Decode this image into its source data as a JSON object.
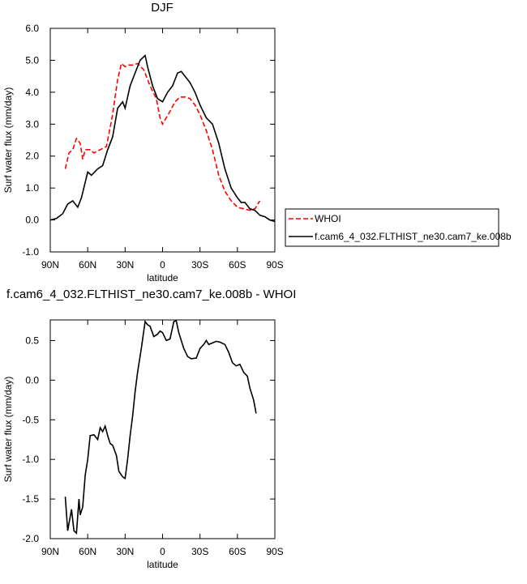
{
  "chart_data": [
    {
      "type": "line",
      "title": "DJF",
      "xlabel": "latitude",
      "ylabel": "Surf water flux (mm/day)",
      "xlim": [
        90,
        -90
      ],
      "ylim": [
        -1,
        6
      ],
      "xticks": [
        {
          "value": 90,
          "label": "90N"
        },
        {
          "value": 60,
          "label": "60N"
        },
        {
          "value": 30,
          "label": "30N"
        },
        0,
        {
          "value": -30,
          "label": "30S"
        },
        {
          "value": -60,
          "label": "60S"
        },
        {
          "value": -90,
          "label": "90S"
        }
      ],
      "yticks": [
        {
          "value": -1,
          "label": "-1.0"
        },
        {
          "value": 0,
          "label": "0.0"
        },
        {
          "value": 1,
          "label": "1.0"
        },
        {
          "value": 2,
          "label": "2.0"
        },
        {
          "value": 3,
          "label": "3.0"
        },
        {
          "value": 4,
          "label": "4.0"
        },
        {
          "value": 5,
          "label": "5.0"
        },
        {
          "value": 6,
          "label": "6.0"
        }
      ],
      "series": [
        {
          "name": "WHOI",
          "color": "#ff0000",
          "dash": true,
          "x": [
            78,
            75,
            72,
            69,
            66,
            64,
            62,
            58,
            55,
            50,
            45,
            40,
            36,
            33,
            30,
            27,
            24,
            20,
            15,
            10,
            5,
            2,
            0,
            -3,
            -6,
            -10,
            -14,
            -18,
            -22,
            -26,
            -30,
            -35,
            -40,
            -45,
            -50,
            -55,
            -60,
            -65,
            -70,
            -74,
            -78
          ],
          "values": [
            1.6,
            2.1,
            2.2,
            2.55,
            2.4,
            1.9,
            2.2,
            2.2,
            2.1,
            2.2,
            2.3,
            3.3,
            4.4,
            4.9,
            4.8,
            4.85,
            4.85,
            4.9,
            4.7,
            4.2,
            3.8,
            3.2,
            3.0,
            3.2,
            3.4,
            3.7,
            3.85,
            3.85,
            3.8,
            3.6,
            3.3,
            2.8,
            2.2,
            1.4,
            0.9,
            0.6,
            0.4,
            0.35,
            0.3,
            0.35,
            0.6
          ]
        },
        {
          "name": "f.cam6_4_032.FLTHIST_ne30.cam7_ke.008b",
          "color": "#000000",
          "dash": false,
          "x": [
            90,
            85,
            80,
            76,
            72,
            68,
            65,
            60,
            57,
            52,
            48,
            44,
            40,
            36,
            32,
            30,
            26,
            22,
            18,
            14,
            12,
            8,
            4,
            0,
            -4,
            -8,
            -12,
            -15,
            -18,
            -22,
            -26,
            -30,
            -35,
            -40,
            -45,
            -50,
            -55,
            -60,
            -63,
            -66,
            -70,
            -74,
            -78,
            -82,
            -86,
            -90
          ],
          "values": [
            0.0,
            0.05,
            0.2,
            0.5,
            0.6,
            0.4,
            0.7,
            1.5,
            1.4,
            1.6,
            1.7,
            2.2,
            2.6,
            3.5,
            3.7,
            3.5,
            4.2,
            4.6,
            5.0,
            5.15,
            4.8,
            4.2,
            3.8,
            3.7,
            4.0,
            4.2,
            4.6,
            4.65,
            4.5,
            4.3,
            4.0,
            3.6,
            3.2,
            3.0,
            2.4,
            1.6,
            1.0,
            0.7,
            0.55,
            0.55,
            0.35,
            0.3,
            0.15,
            0.1,
            0.0,
            -0.05
          ]
        }
      ]
    },
    {
      "type": "line",
      "title": "f.cam6_4_032.FLTHIST_ne30.cam7_ke.008b - WHOI",
      "xlabel": "latitude",
      "ylabel": "Surf water flux (mm/day)",
      "xlim": [
        90,
        -90
      ],
      "ylim": [
        -2,
        0.76
      ],
      "xticks": [
        {
          "value": 90,
          "label": "90N"
        },
        {
          "value": 60,
          "label": "60N"
        },
        {
          "value": 30,
          "label": "30N"
        },
        0,
        {
          "value": -30,
          "label": "30S"
        },
        {
          "value": -60,
          "label": "60S"
        },
        {
          "value": -90,
          "label": "90S"
        }
      ],
      "yticks": [
        {
          "value": -2,
          "label": "-2.0"
        },
        -1.5,
        {
          "value": -1,
          "label": "-1.0"
        },
        -0.5,
        {
          "value": 0,
          "label": "0.0"
        },
        0.5
      ],
      "series": [
        {
          "color": "#000000",
          "dash": false,
          "x": [
            78,
            76,
            73,
            71,
            69,
            67,
            66,
            64,
            62,
            60,
            58,
            55,
            52,
            50,
            48,
            46,
            44,
            42,
            40,
            37,
            35,
            32,
            30,
            28,
            26,
            24,
            22,
            20,
            17,
            14,
            12,
            10,
            7,
            4,
            2,
            0,
            -3,
            -6,
            -9,
            -11,
            -13,
            -17,
            -20,
            -23,
            -27,
            -30,
            -33,
            -35,
            -37,
            -40,
            -43,
            -46,
            -50,
            -53,
            -56,
            -59,
            -62,
            -65,
            -68,
            -70,
            -73,
            -75
          ],
          "values": [
            -1.47,
            -1.9,
            -1.63,
            -1.9,
            -1.93,
            -1.5,
            -1.7,
            -1.6,
            -1.2,
            -1.0,
            -0.7,
            -0.69,
            -0.75,
            -0.6,
            -0.65,
            -0.58,
            -0.7,
            -0.8,
            -0.82,
            -0.95,
            -1.15,
            -1.22,
            -1.24,
            -1.0,
            -0.7,
            -0.45,
            -0.15,
            0.1,
            0.4,
            0.74,
            0.7,
            0.68,
            0.55,
            0.58,
            0.62,
            0.6,
            0.5,
            0.52,
            0.74,
            0.75,
            0.6,
            0.4,
            0.3,
            0.27,
            0.28,
            0.4,
            0.45,
            0.5,
            0.45,
            0.47,
            0.49,
            0.48,
            0.45,
            0.35,
            0.22,
            0.18,
            0.2,
            0.1,
            0.05,
            -0.1,
            -0.25,
            -0.42
          ]
        }
      ]
    }
  ]
}
